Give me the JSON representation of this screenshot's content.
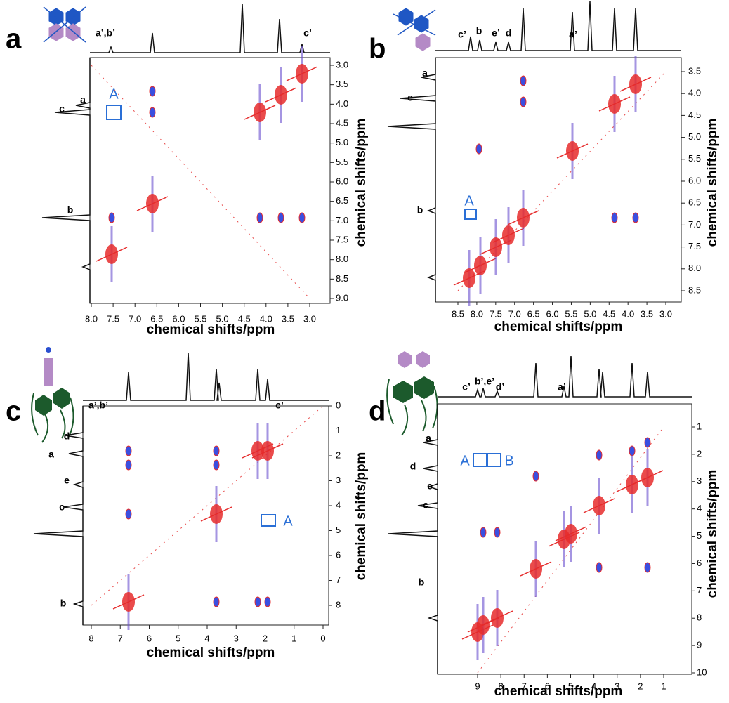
{
  "panels": [
    {
      "label": "a",
      "x_axis_title": "chemical shifts/ppm",
      "y_axis_title": "chemical shifts/ppm",
      "xticks": [
        "8.0",
        "7.5",
        "7.0",
        "6.5",
        "6.0",
        "5.5",
        "5.0",
        "4.5",
        "4.0",
        "3.5",
        "3.0"
      ],
      "yticks": [
        "3.0",
        "3.5",
        "4.0",
        "4.5",
        "5.0",
        "5.5",
        "6.0",
        "6.5",
        "7.0",
        "7.5",
        "8.0",
        "8.5",
        "9.0"
      ],
      "peak_labels": [
        "a’,b’",
        "c’"
      ],
      "side_labels": [
        "a",
        "c",
        "b"
      ],
      "box_labels": [
        "A"
      ]
    },
    {
      "label": "b",
      "x_axis_title": "chemical shifts/ppm",
      "y_axis_title": "chemical shifts/ppm",
      "xticks": [
        "8.5",
        "8.0",
        "7.5",
        "7.0",
        "6.5",
        "6.0",
        "5.5",
        "5.0",
        "4.5",
        "4.0",
        "3.5",
        "3.0"
      ],
      "yticks": [
        "3.5",
        "4.0",
        "4.5",
        "5.0",
        "5.5",
        "6.0",
        "6.5",
        "7.0",
        "7.5",
        "8.0",
        "8.5"
      ],
      "peak_labels": [
        "c’",
        "b",
        "e’",
        "d",
        "a’"
      ],
      "side_labels": [
        "a",
        "c",
        "b"
      ],
      "box_labels": [
        "A"
      ]
    },
    {
      "label": "c",
      "x_axis_title": "chemical shifts/ppm",
      "y_axis_title": "chemical shifts/ppm",
      "xticks": [
        "8",
        "7",
        "6",
        "5",
        "4",
        "3",
        "2",
        "1",
        "0"
      ],
      "yticks": [
        "0",
        "1",
        "2",
        "3",
        "4",
        "5",
        "6",
        "7",
        "8"
      ],
      "peak_labels": [
        "a’,b’",
        "c’"
      ],
      "side_labels": [
        "d",
        "a",
        "e",
        "c",
        "b"
      ],
      "box_labels": [
        "A"
      ]
    },
    {
      "label": "d",
      "x_axis_title": "chemical shifts/ppm",
      "y_axis_title": "chemical shifts/ppm",
      "xticks": [
        "9",
        "8",
        "7",
        "6",
        "5",
        "4",
        "3",
        "2",
        "1"
      ],
      "yticks": [
        "1",
        "2",
        "3",
        "4",
        "5",
        "6",
        "7",
        "8",
        "9",
        "10"
      ],
      "peak_labels": [
        "c’",
        "b’,e’",
        "d’",
        "a’"
      ],
      "side_labels": [
        "a",
        "d",
        "e",
        "c",
        "b"
      ],
      "box_labels": [
        "A",
        "B"
      ]
    }
  ]
}
